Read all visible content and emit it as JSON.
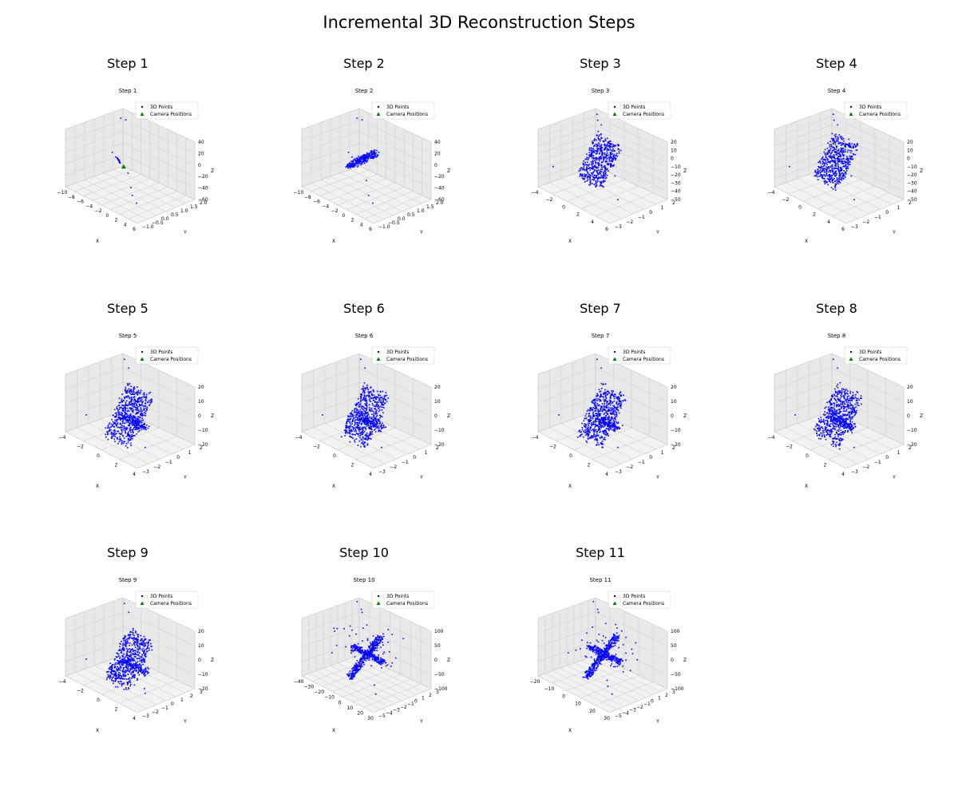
{
  "figure": {
    "title": "Incremental 3D Reconstruction Steps"
  },
  "colors": {
    "points": "#0000ff",
    "cameras": "#008000",
    "grid": "#cccccc",
    "pane": "#f2f2f2",
    "pane_wall": "#e9e9e9"
  },
  "legend": {
    "points_label": "3D Points",
    "cameras_label": "Camera Positions",
    "placement": "upper-right"
  },
  "chart_data": [
    {
      "type": "scatter3d",
      "title": "Step 1",
      "inner_title": "Step 1",
      "xlabel": "X",
      "ylabel": "Y",
      "zlabel": "Z",
      "xticks": [
        "−10",
        "−8",
        "−6",
        "−4",
        "−2",
        "0",
        "2",
        "4",
        "6"
      ],
      "yticks": [
        "−1.0",
        "−0.5",
        "0.0",
        "0.5",
        "1.0",
        "1.5",
        "2.0"
      ],
      "zticks": [
        "−60",
        "−40",
        "−20",
        "0",
        "20",
        "40"
      ],
      "shape": "line",
      "cameras": [
        [
          0.45,
          0.45,
          0.45
        ]
      ],
      "outliers": [
        [
          0.05,
          0.9,
          0.85
        ],
        [
          0.08,
          0.95,
          0.82
        ],
        [
          0.25,
          0.5,
          0.55
        ],
        [
          0.3,
          0.5,
          0.5
        ],
        [
          0.35,
          0.5,
          0.48
        ],
        [
          0.55,
          0.4,
          0.42
        ],
        [
          0.75,
          0.2,
          0.38
        ],
        [
          0.85,
          0.1,
          0.35
        ],
        [
          0.95,
          0.05,
          0.3
        ]
      ]
    },
    {
      "type": "scatter3d",
      "title": "Step 2",
      "inner_title": "Step 2",
      "xlabel": "X",
      "ylabel": "Y",
      "zlabel": "Z",
      "xticks": [
        "−10",
        "−8",
        "−6",
        "−4",
        "−2",
        "0",
        "2",
        "4",
        "6"
      ],
      "yticks": [
        "−1.0",
        "−0.5",
        "0.0",
        "0.5",
        "1.0",
        "1.5",
        "2.0"
      ],
      "zticks": [
        "−60",
        "−40",
        "−20",
        "0",
        "20",
        "40"
      ],
      "shape": "streak",
      "cameras": [],
      "outliers": [
        [
          0.05,
          0.9,
          0.85
        ],
        [
          0.08,
          0.95,
          0.82
        ],
        [
          0.25,
          0.5,
          0.55
        ],
        [
          0.3,
          0.5,
          0.5
        ],
        [
          0.35,
          0.5,
          0.48
        ],
        [
          0.7,
          0.25,
          0.45
        ],
        [
          0.85,
          0.1,
          0.35
        ],
        [
          0.95,
          0.05,
          0.3
        ]
      ]
    },
    {
      "type": "scatter3d",
      "title": "Step 3",
      "inner_title": "Step 3",
      "xlabel": "X",
      "ylabel": "Y",
      "zlabel": "Z",
      "xticks": [
        "−4",
        "−2",
        "0",
        "2",
        "4",
        "6"
      ],
      "yticks": [
        "−3",
        "−2",
        "−1",
        "0",
        "1",
        "2"
      ],
      "zticks": [
        "−50",
        "−40",
        "−30",
        "−20",
        "−10",
        "0",
        "10",
        "20"
      ],
      "shape": "slab",
      "cameras": [],
      "outliers": [
        [
          0.1,
          0.9,
          0.95
        ],
        [
          0.15,
          0.85,
          0.9
        ],
        [
          0.2,
          0.85,
          0.85
        ],
        [
          0.05,
          0.2,
          0.3
        ],
        [
          0.75,
          0.4,
          0.5
        ],
        [
          0.95,
          0.2,
          0.3
        ]
      ]
    },
    {
      "type": "scatter3d",
      "title": "Step 4",
      "inner_title": "Step 4",
      "xlabel": "X",
      "ylabel": "Y",
      "zlabel": "Z",
      "xticks": [
        "−4",
        "−2",
        "0",
        "2",
        "4",
        "6"
      ],
      "yticks": [
        "−3",
        "−2",
        "−1",
        "0",
        "1",
        "2"
      ],
      "zticks": [
        "−50",
        "−40",
        "−30",
        "−20",
        "−10",
        "0",
        "10",
        "20"
      ],
      "shape": "slab",
      "cameras": [],
      "outliers": [
        [
          0.1,
          0.9,
          0.95
        ],
        [
          0.15,
          0.85,
          0.9
        ],
        [
          0.2,
          0.85,
          0.85
        ],
        [
          0.05,
          0.2,
          0.3
        ],
        [
          0.75,
          0.4,
          0.5
        ],
        [
          0.95,
          0.2,
          0.3
        ]
      ]
    },
    {
      "type": "scatter3d",
      "title": "Step 5",
      "inner_title": "Step 5",
      "xlabel": "X",
      "ylabel": "Y",
      "zlabel": "Z",
      "xticks": [
        "−4",
        "−2",
        "0",
        "2",
        "4"
      ],
      "yticks": [
        "−3",
        "−2",
        "−1",
        "0",
        "1",
        "2"
      ],
      "zticks": [
        "−20",
        "−10",
        "0",
        "10",
        "20"
      ],
      "shape": "cloud",
      "cameras": [],
      "outliers": [
        [
          0.1,
          0.9,
          0.95
        ],
        [
          0.2,
          0.85,
          0.88
        ],
        [
          0.05,
          0.3,
          0.2
        ],
        [
          0.95,
          0.2,
          0.25
        ]
      ]
    },
    {
      "type": "scatter3d",
      "title": "Step 6",
      "inner_title": "Step 6",
      "xlabel": "X",
      "ylabel": "Y",
      "zlabel": "Z",
      "xticks": [
        "−4",
        "−2",
        "0",
        "2",
        "4"
      ],
      "yticks": [
        "−3",
        "−2",
        "−1",
        "0",
        "1",
        "2"
      ],
      "zticks": [
        "−20",
        "−10",
        "0",
        "10",
        "20"
      ],
      "shape": "cloud",
      "cameras": [],
      "outliers": [
        [
          0.1,
          0.9,
          0.95
        ],
        [
          0.2,
          0.85,
          0.88
        ],
        [
          0.05,
          0.3,
          0.2
        ],
        [
          0.95,
          0.2,
          0.25
        ]
      ]
    },
    {
      "type": "scatter3d",
      "title": "Step 7",
      "inner_title": "Step 7",
      "xlabel": "X",
      "ylabel": "Y",
      "zlabel": "Z",
      "xticks": [
        "−4",
        "−2",
        "0",
        "2",
        "4"
      ],
      "yticks": [
        "−3",
        "−2",
        "−1",
        "0",
        "1",
        "2"
      ],
      "zticks": [
        "−20",
        "−10",
        "0",
        "10",
        "20"
      ],
      "shape": "cloud",
      "cameras": [],
      "outliers": [
        [
          0.1,
          0.9,
          0.95
        ],
        [
          0.2,
          0.85,
          0.88
        ],
        [
          0.05,
          0.3,
          0.2
        ],
        [
          0.95,
          0.2,
          0.25
        ]
      ]
    },
    {
      "type": "scatter3d",
      "title": "Step 8",
      "inner_title": "Step 8",
      "xlabel": "X",
      "ylabel": "Y",
      "zlabel": "Z",
      "xticks": [
        "−4",
        "−2",
        "0",
        "2",
        "4"
      ],
      "yticks": [
        "−3",
        "−2",
        "−1",
        "0",
        "1",
        "2"
      ],
      "zticks": [
        "−20",
        "−10",
        "0",
        "10",
        "20"
      ],
      "shape": "cloud",
      "cameras": [],
      "outliers": [
        [
          0.1,
          0.9,
          0.95
        ],
        [
          0.2,
          0.85,
          0.88
        ],
        [
          0.05,
          0.3,
          0.2
        ],
        [
          0.95,
          0.2,
          0.25
        ]
      ]
    },
    {
      "type": "scatter3d",
      "title": "Step 9",
      "inner_title": "Step 9",
      "xlabel": "X",
      "ylabel": "Y",
      "zlabel": "Z",
      "xticks": [
        "−4",
        "−2",
        "0",
        "2",
        "4"
      ],
      "yticks": [
        "−3",
        "−2",
        "−1",
        "0",
        "1",
        "2",
        "3"
      ],
      "zticks": [
        "−20",
        "−10",
        "0",
        "10",
        "20"
      ],
      "shape": "cloud",
      "cameras": [],
      "outliers": [
        [
          0.1,
          0.9,
          0.95
        ],
        [
          0.2,
          0.85,
          0.88
        ],
        [
          0.05,
          0.3,
          0.2
        ],
        [
          0.9,
          0.25,
          0.25
        ],
        [
          0.95,
          0.2,
          0.22
        ]
      ]
    },
    {
      "type": "scatter3d",
      "title": "Step 10",
      "inner_title": "Step 10",
      "xlabel": "X",
      "ylabel": "Y",
      "zlabel": "Z",
      "xticks": [
        "−40",
        "−30",
        "−20",
        "−10",
        "0",
        "10",
        "20",
        "30"
      ],
      "yticks": [
        "−5",
        "−4",
        "−3",
        "−2",
        "−1",
        "0",
        "1",
        "2",
        "3"
      ],
      "zticks": [
        "−100",
        "−50",
        "0",
        "50",
        "100"
      ],
      "shape": "cross",
      "cameras": [],
      "outliers": [
        [
          0.05,
          0.9,
          0.95
        ],
        [
          0.15,
          0.85,
          0.9
        ],
        [
          0.2,
          0.8,
          0.9
        ],
        [
          0.1,
          0.4,
          0.3
        ],
        [
          0.85,
          0.2,
          0.3
        ],
        [
          0.95,
          0.1,
          0.25
        ]
      ]
    },
    {
      "type": "scatter3d",
      "title": "Step 11",
      "inner_title": "Step 11",
      "xlabel": "X",
      "ylabel": "Y",
      "zlabel": "Z",
      "xticks": [
        "−20",
        "−10",
        "0",
        "10",
        "20",
        "30"
      ],
      "yticks": [
        "−5",
        "−4",
        "−3",
        "−2",
        "−1",
        "0",
        "1",
        "2",
        "3"
      ],
      "zticks": [
        "−100",
        "−50",
        "0",
        "50",
        "100"
      ],
      "shape": "cross",
      "cameras": [],
      "outliers": [
        [
          0.05,
          0.9,
          0.95
        ],
        [
          0.15,
          0.85,
          0.9
        ],
        [
          0.2,
          0.8,
          0.9
        ],
        [
          0.1,
          0.4,
          0.3
        ],
        [
          0.8,
          0.2,
          0.35
        ],
        [
          0.85,
          0.15,
          0.3
        ],
        [
          0.95,
          0.1,
          0.25
        ]
      ]
    }
  ]
}
